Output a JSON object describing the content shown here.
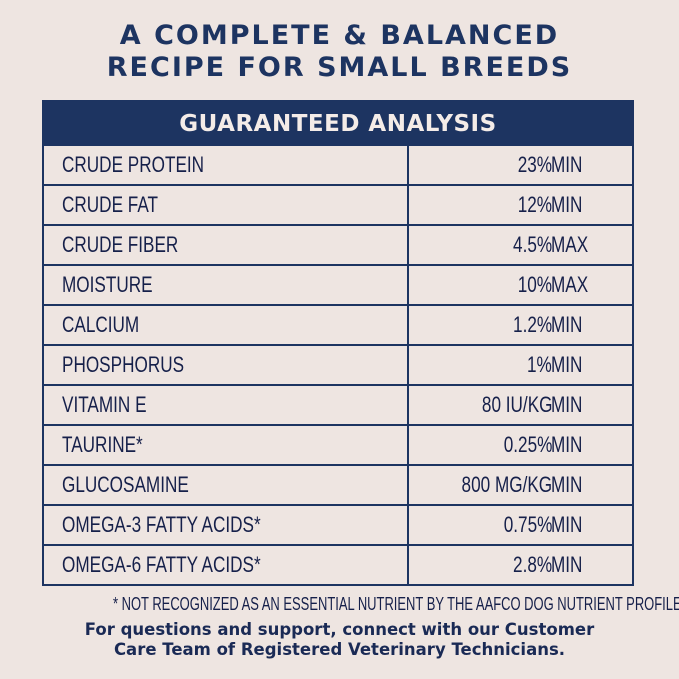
{
  "title_line1": "A COMPLETE & BALANCED",
  "title_line2": "RECIPE FOR SMALL BREEDS",
  "table": {
    "header": "GUARANTEED ANALYSIS",
    "rows": [
      {
        "name": "CRUDE PROTEIN",
        "amount": "23%",
        "unit": "MIN"
      },
      {
        "name": "CRUDE FAT",
        "amount": "12%",
        "unit": "MIN"
      },
      {
        "name": "CRUDE FIBER",
        "amount": "4.5%",
        "unit": "MAX"
      },
      {
        "name": "MOISTURE",
        "amount": "10%",
        "unit": "MAX"
      },
      {
        "name": "CALCIUM",
        "amount": "1.2%",
        "unit": "MIN"
      },
      {
        "name": "PHOSPHORUS",
        "amount": "1%",
        "unit": "MIN"
      },
      {
        "name": "VITAMIN E",
        "amount": "80 IU/KG",
        "unit": "MIN"
      },
      {
        "name": "TAURINE*",
        "amount": "0.25%",
        "unit": "MIN"
      },
      {
        "name": "GLUCOSAMINE",
        "amount": "800 MG/KG",
        "unit": "MIN"
      },
      {
        "name": "OMEGA-3 FATTY ACIDS*",
        "amount": "0.75%",
        "unit": "MIN"
      },
      {
        "name": "OMEGA-6 FATTY ACIDS*",
        "amount": "2.8%",
        "unit": "MIN"
      }
    ]
  },
  "footnote": "* NOT RECOGNIZED AS AN ESSENTIAL NUTRIENT BY THE AAFCO DOG NUTRIENT PROFILES.",
  "support_line1": "For questions and support, connect with our Customer",
  "support_line2": "Care Team of Registered Veterinary Technicians.",
  "colors": {
    "navy": "#1d3461",
    "background": "#eee5e1"
  }
}
